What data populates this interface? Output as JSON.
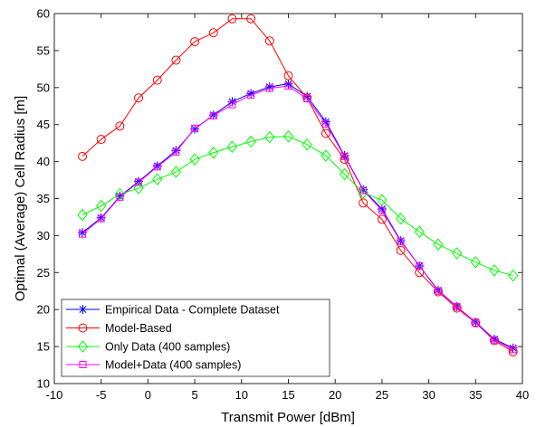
{
  "chart_data": {
    "type": "line",
    "xlabel": "Transmit Power [dBm]",
    "ylabel": "Optimal (Average) Cell Radius [m]",
    "xlim": [
      -10,
      40
    ],
    "ylim": [
      10,
      60
    ],
    "xticks": [
      -10,
      -5,
      0,
      5,
      10,
      15,
      20,
      25,
      30,
      35,
      40
    ],
    "yticks": [
      10,
      15,
      20,
      25,
      30,
      35,
      40,
      45,
      50,
      55,
      60
    ],
    "grid": false,
    "legend_position": "bottom-left",
    "x": [
      -7,
      -5,
      -3,
      -1,
      1,
      3,
      5,
      7,
      9,
      11,
      13,
      15,
      17,
      19,
      21,
      23,
      25,
      27,
      29,
      31,
      33,
      35,
      37,
      39
    ],
    "series": [
      {
        "name": "Empirical Data - Complete Dataset",
        "color": "#0000ff",
        "marker": "asterisk",
        "values": [
          30.4,
          32.4,
          35.3,
          37.3,
          39.4,
          41.5,
          44.4,
          46.3,
          48.1,
          49.2,
          50.1,
          50.5,
          48.8,
          45.4,
          40.8,
          36.2,
          33.6,
          29.3,
          25.9,
          22.6,
          20.4,
          18.3,
          16.0,
          14.8
        ]
      },
      {
        "name": "Model-Based",
        "color": "#ff0000",
        "marker": "circle",
        "values": [
          40.7,
          43.0,
          44.8,
          48.6,
          51.0,
          53.7,
          56.2,
          57.4,
          59.3,
          59.3,
          56.3,
          51.6,
          48.6,
          43.8,
          40.3,
          34.4,
          32.2,
          28.0,
          25.0,
          22.4,
          20.2,
          18.2,
          15.8,
          14.3
        ]
      },
      {
        "name": "Only Data (400 samples)",
        "color": "#00ff00",
        "marker": "diamond",
        "values": [
          32.8,
          34.0,
          35.6,
          36.4,
          37.6,
          38.6,
          40.3,
          41.2,
          42.0,
          42.7,
          43.3,
          43.4,
          42.3,
          40.8,
          38.3,
          35.8,
          34.8,
          32.3,
          30.5,
          28.8,
          27.6,
          26.4,
          25.3,
          24.6
        ]
      },
      {
        "name": "Model+Data (400 samples)",
        "color": "#ff00ff",
        "marker": "square",
        "values": [
          30.2,
          32.3,
          35.2,
          37.2,
          39.3,
          41.3,
          44.5,
          46.2,
          47.7,
          49.0,
          49.9,
          50.2,
          48.5,
          45.1,
          40.7,
          36.1,
          33.4,
          29.2,
          25.9,
          22.5,
          20.4,
          18.2,
          15.9,
          14.6
        ]
      }
    ]
  }
}
